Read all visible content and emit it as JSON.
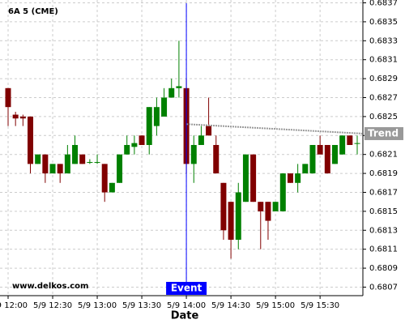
{
  "chart_data": {
    "type": "candlestick",
    "title": "6A 5 (CME)",
    "x_label": "Date",
    "watermark": "www.delkos.com",
    "categories": [
      "5/9 12:00",
      null,
      null,
      null,
      null,
      null,
      "5/9 12:30",
      null,
      null,
      null,
      null,
      null,
      "5/9 13:00",
      null,
      null,
      null,
      null,
      null,
      "5/9 13:30",
      null,
      null,
      null,
      null,
      null,
      "5/9 14:00",
      null,
      null,
      null,
      null,
      null,
      "5/9 14:30",
      null,
      null,
      null,
      null,
      null,
      "5/9 15:00",
      null,
      null,
      null,
      null,
      null,
      "5/9 15:30",
      null,
      null,
      null,
      null,
      null
    ],
    "open": [
      0.6828,
      0.68252,
      0.6825,
      0.6825,
      0.682,
      0.6821,
      0.6819,
      0.682,
      0.6819,
      0.682,
      0.6821,
      0.68202,
      0.68202,
      0.682,
      0.6817,
      0.6818,
      0.6821,
      0.68218,
      0.6823,
      0.6822,
      0.6824,
      0.6825,
      0.6827,
      0.6828,
      0.6828,
      0.682,
      0.6822,
      0.6824,
      0.6822,
      0.6818,
      0.6816,
      0.6812,
      0.6816,
      0.6821,
      0.6816,
      0.6816,
      0.6815,
      0.6815,
      0.6819,
      0.6818,
      0.6819,
      0.6819,
      0.6822,
      0.6822,
      0.682,
      0.6821,
      0.6823,
      0.68222
    ],
    "high": [
      0.6828,
      0.68255,
      0.68252,
      0.6825,
      0.6821,
      0.6821,
      0.682,
      0.682,
      0.6822,
      0.6823,
      0.6821,
      0.68205,
      0.6821,
      0.682,
      0.6818,
      0.6821,
      0.6823,
      0.6823,
      0.6823,
      0.6826,
      0.6827,
      0.6828,
      0.6829,
      0.6833,
      0.6829,
      0.6823,
      0.6824,
      0.6827,
      0.6823,
      0.6818,
      0.6816,
      0.6818,
      0.6821,
      0.6821,
      0.6816,
      0.6816,
      0.6816,
      0.6819,
      0.6819,
      0.682,
      0.682,
      0.6822,
      0.6823,
      0.6822,
      0.6822,
      0.6823,
      0.6823,
      0.6823
    ],
    "low": [
      0.6824,
      0.6824,
      0.6824,
      0.6819,
      0.682,
      0.6818,
      0.6819,
      0.6818,
      0.6819,
      0.682,
      0.682,
      0.682,
      0.682,
      0.6816,
      0.6817,
      0.6818,
      0.6821,
      0.6821,
      0.6822,
      0.6821,
      0.6823,
      0.6825,
      0.6827,
      0.6827,
      0.6819,
      0.6818,
      0.6822,
      0.6823,
      0.6819,
      0.6812,
      0.681,
      0.6811,
      0.6816,
      0.6816,
      0.6811,
      0.6812,
      0.6815,
      0.6815,
      0.6818,
      0.6817,
      0.6819,
      0.6819,
      0.6821,
      0.6819,
      0.682,
      0.6821,
      0.6822,
      0.6821
    ],
    "close": [
      0.6826,
      0.68248,
      0.68248,
      0.682,
      0.6821,
      0.6819,
      0.682,
      0.6819,
      0.6821,
      0.6822,
      0.682,
      0.68202,
      0.68202,
      0.6817,
      0.6818,
      0.6821,
      0.6822,
      0.68222,
      0.6822,
      0.6826,
      0.6826,
      0.6827,
      0.6828,
      0.68282,
      0.682,
      0.6822,
      0.6823,
      0.6823,
      0.6819,
      0.6813,
      0.6812,
      0.6817,
      0.6821,
      0.6816,
      0.6815,
      0.6814,
      0.6816,
      0.6819,
      0.6818,
      0.6819,
      0.682,
      0.6822,
      0.6821,
      0.6819,
      0.6822,
      0.6823,
      0.6822,
      0.68222
    ],
    "up_color": "#008000",
    "down_color": "#800000",
    "ylim": [
      0.68061,
      0.68373
    ],
    "yticks": [
      0.6807,
      0.6809,
      0.6811,
      0.6813,
      0.6815,
      0.6817,
      0.6819,
      0.6821,
      0.6823,
      0.6825,
      0.6827,
      0.6829,
      0.6831,
      0.6833,
      0.6835,
      0.6837
    ],
    "grid": true,
    "event": {
      "label": "Event",
      "at": "5/9 14:00",
      "color": "#0000ff"
    },
    "trend": {
      "label": "Trend",
      "from": "5/9 14:00",
      "values": [
        0.68242,
        0.68232
      ],
      "color": "#999999"
    }
  }
}
